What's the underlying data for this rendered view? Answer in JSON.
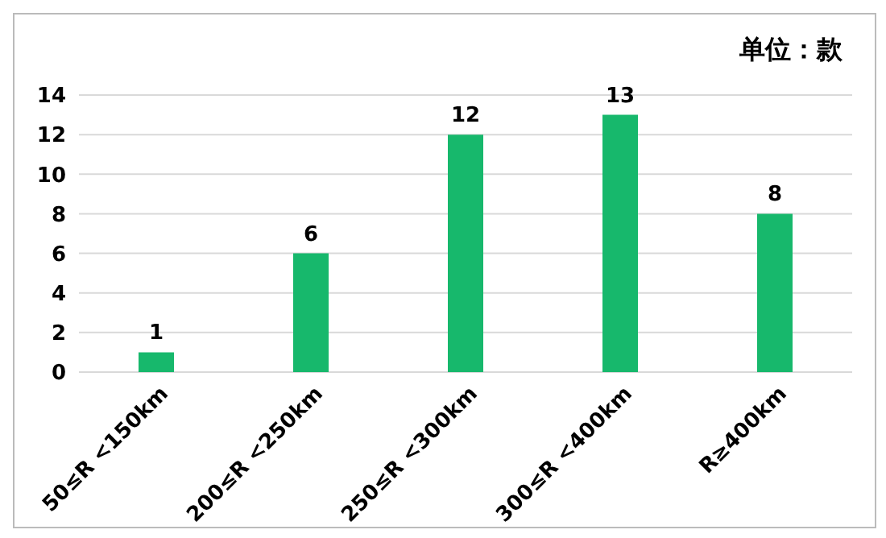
{
  "chart_data": {
    "type": "bar",
    "annotations": [
      "单位：款"
    ],
    "categories": [
      "50≤R <150km",
      "200≤R <250km",
      "250≤R <300km",
      "300≤R <400km",
      "R≥400km"
    ],
    "values": [
      1,
      6,
      12,
      13,
      8
    ],
    "color": "#17b86c",
    "ylim": [
      0,
      14
    ],
    "yticks": [
      0,
      2,
      4,
      6,
      8,
      10,
      12,
      14
    ],
    "grid": "y",
    "data_labels": true
  }
}
